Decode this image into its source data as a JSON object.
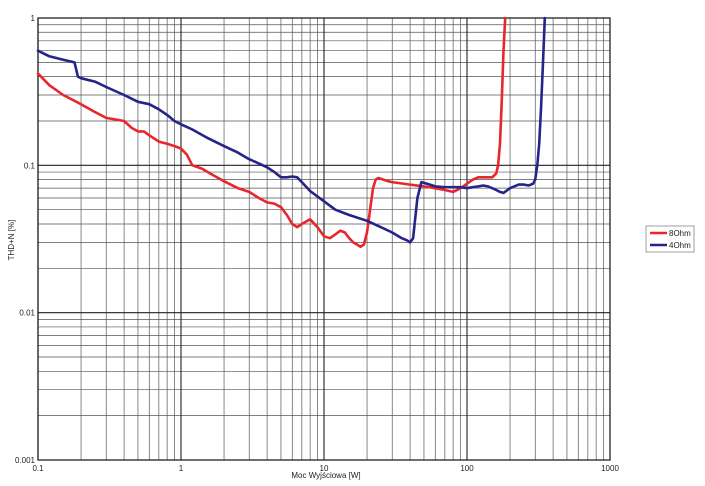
{
  "chart_data": {
    "type": "line",
    "title": "",
    "xlabel": "Moc Wyjściowa [W]",
    "ylabel": "THD+N [%]",
    "xscale": "log",
    "yscale": "log",
    "xlim": [
      0.1,
      1000
    ],
    "ylim": [
      0.001,
      1
    ],
    "grid": true,
    "legend_position": "right",
    "x_tick_labels": [
      "0.1",
      "1",
      "10",
      "100",
      "1000"
    ],
    "y_tick_labels": [
      "0.001",
      "0.01",
      "0.1",
      "1"
    ],
    "series": [
      {
        "name": "8Ohm",
        "color": "#e8262b",
        "x": [
          0.1,
          0.12,
          0.15,
          0.2,
          0.25,
          0.3,
          0.4,
          0.45,
          0.5,
          0.55,
          0.6,
          0.7,
          0.8,
          0.9,
          1.0,
          1.1,
          1.2,
          1.4,
          1.6,
          2.0,
          2.5,
          3.0,
          3.5,
          4.0,
          4.5,
          5.0,
          5.5,
          6.0,
          6.5,
          7.0,
          8.0,
          9.0,
          10.0,
          11.0,
          12.0,
          13.0,
          14.0,
          15.0,
          16.0,
          17.0,
          18.0,
          19.0,
          20.0,
          21.0,
          22.0,
          23.0,
          24.0,
          26.0,
          28.0,
          30.0,
          40.0,
          50.0,
          60.0,
          70.0,
          80.0,
          90.0,
          100.0,
          110.0,
          120.0,
          130.0,
          140.0,
          150.0,
          160.0,
          165.0,
          170.0,
          175.0,
          180.0,
          185.0
        ],
        "y": [
          0.42,
          0.35,
          0.3,
          0.26,
          0.23,
          0.21,
          0.2,
          0.18,
          0.17,
          0.17,
          0.16,
          0.145,
          0.14,
          0.135,
          0.13,
          0.118,
          0.1,
          0.095,
          0.088,
          0.078,
          0.07,
          0.066,
          0.06,
          0.056,
          0.055,
          0.052,
          0.046,
          0.04,
          0.038,
          0.04,
          0.043,
          0.038,
          0.033,
          0.032,
          0.034,
          0.036,
          0.035,
          0.032,
          0.03,
          0.029,
          0.028,
          0.029,
          0.035,
          0.05,
          0.07,
          0.08,
          0.082,
          0.08,
          0.078,
          0.077,
          0.074,
          0.072,
          0.07,
          0.068,
          0.066,
          0.07,
          0.075,
          0.08,
          0.083,
          0.083,
          0.083,
          0.083,
          0.088,
          0.1,
          0.14,
          0.28,
          0.6,
          1.0
        ]
      },
      {
        "name": "4Ohm",
        "color": "#24248a",
        "x": [
          0.1,
          0.12,
          0.15,
          0.18,
          0.19,
          0.2,
          0.25,
          0.3,
          0.4,
          0.5,
          0.6,
          0.7,
          0.8,
          0.9,
          1.0,
          1.2,
          1.5,
          2.0,
          2.5,
          3.0,
          3.5,
          4.0,
          4.5,
          5.0,
          5.5,
          6.0,
          6.5,
          7.0,
          8.0,
          10.0,
          12.0,
          15.0,
          20.0,
          25.0,
          30.0,
          35.0,
          38.0,
          40.0,
          42.0,
          45.0,
          48.0,
          50.0,
          55.0,
          60.0,
          70.0,
          80.0,
          90.0,
          100.0,
          110.0,
          120.0,
          130.0,
          140.0,
          150.0,
          160.0,
          170.0,
          180.0,
          200.0,
          230.0,
          250.0,
          270.0,
          290.0,
          300.0,
          310.0,
          320.0,
          330.0,
          340.0,
          350.0
        ],
        "y": [
          0.6,
          0.55,
          0.52,
          0.5,
          0.4,
          0.39,
          0.37,
          0.34,
          0.3,
          0.27,
          0.26,
          0.24,
          0.22,
          0.2,
          0.19,
          0.175,
          0.155,
          0.135,
          0.122,
          0.11,
          0.103,
          0.097,
          0.09,
          0.083,
          0.083,
          0.084,
          0.083,
          0.077,
          0.067,
          0.057,
          0.05,
          0.046,
          0.042,
          0.038,
          0.035,
          0.032,
          0.031,
          0.03,
          0.032,
          0.06,
          0.077,
          0.076,
          0.074,
          0.072,
          0.071,
          0.071,
          0.071,
          0.07,
          0.071,
          0.072,
          0.073,
          0.072,
          0.07,
          0.068,
          0.066,
          0.065,
          0.07,
          0.074,
          0.074,
          0.073,
          0.075,
          0.08,
          0.1,
          0.14,
          0.25,
          0.5,
          1.0
        ]
      }
    ]
  }
}
